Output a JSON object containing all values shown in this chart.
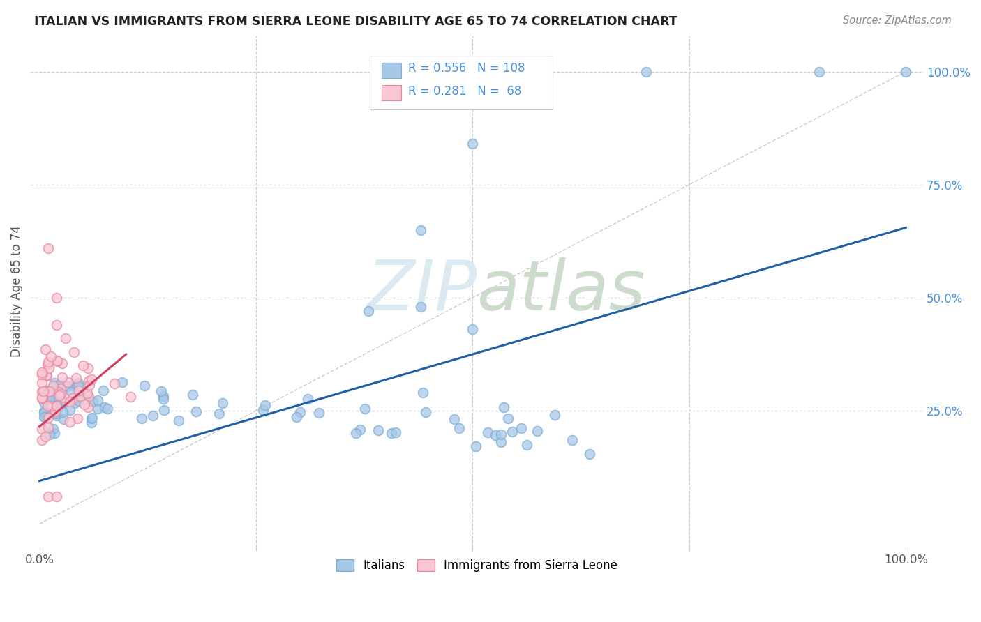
{
  "title": "ITALIAN VS IMMIGRANTS FROM SIERRA LEONE DISABILITY AGE 65 TO 74 CORRELATION CHART",
  "source": "Source: ZipAtlas.com",
  "ylabel": "Disability Age 65 to 74",
  "watermark": "ZIPatlas",
  "blue_R": 0.556,
  "blue_N": 108,
  "pink_R": 0.281,
  "pink_N": 68,
  "blue_color": "#a8c8e8",
  "blue_edge_color": "#7bafd4",
  "pink_color": "#f9c8d4",
  "pink_edge_color": "#e888a0",
  "blue_line_color": "#2060a0",
  "pink_line_color": "#d04060",
  "legend_label_blue": "Italians",
  "legend_label_pink": "Immigrants from Sierra Leone",
  "bg_color": "#ffffff",
  "grid_color": "#bbbbbb",
  "right_tick_color": "#4a90d9",
  "title_color": "#222222",
  "source_color": "#888888",
  "ylabel_color": "#555555"
}
